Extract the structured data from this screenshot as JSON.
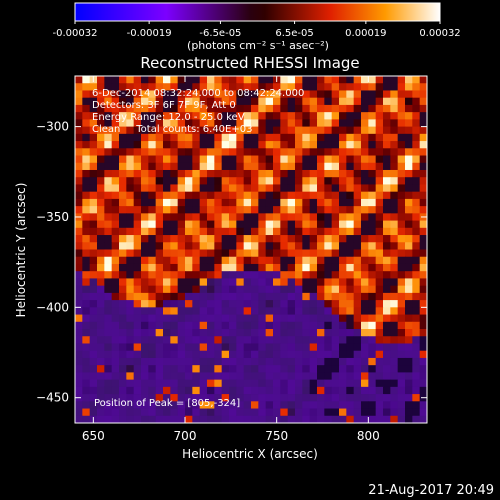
{
  "colorbar": {
    "ticks": [
      "-0.00032",
      "-0.00019",
      "-6.5e-05",
      "6.5e-05",
      "0.00019",
      "0.00032"
    ],
    "tick_values": [
      -0.00032,
      -0.00019,
      -6.5e-05,
      6.5e-05,
      0.00019,
      0.00032
    ],
    "range": [
      -0.00032,
      0.00032
    ],
    "unit_label": "(photons cm⁻² s⁻¹ asec⁻²)"
  },
  "chart_data": {
    "type": "heatmap",
    "title": "Reconstructed RHESSI Image",
    "xlabel": "Heliocentric X (arcsec)",
    "ylabel": "Heliocentric Y (arcsec)",
    "xlim": [
      640,
      832
    ],
    "ylim": [
      -464,
      -272
    ],
    "xticks": [
      "650",
      "700",
      "750",
      "800"
    ],
    "xtick_values": [
      650,
      700,
      750,
      800
    ],
    "yticks": [
      "−300",
      "−350",
      "−400",
      "−450"
    ],
    "ytick_values": [
      -300,
      -350,
      -400,
      -450
    ],
    "annotations": [
      "6-Dec-2014 08:32:24.000 to 08:42:24.000",
      "Detectors: 3F 6F 7F 9F, Att 0",
      "Energy Range: 12.0 - 25.0 keV",
      "Clean     Total counts: 6.40E+03"
    ],
    "peak_label": "Position of Peak = [805,-324]",
    "peak": [
      805,
      -324
    ]
  },
  "footer": {
    "timestamp": "21-Aug-2017 20:49"
  }
}
